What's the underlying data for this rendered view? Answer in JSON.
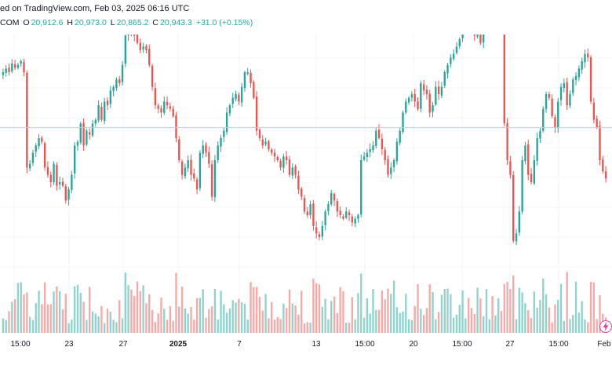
{
  "header": {
    "published": "ed on TradingView.com, Feb 03, 2025 06:16 UTC",
    "symbol": "COM",
    "o_label": "O",
    "o_value": "20,912.6",
    "h_label": "H",
    "h_value": "20,973.0",
    "l_label": "L",
    "l_value": "20,865.2",
    "c_label": "C",
    "c_value": "20,943.3",
    "change": "+31.0 (+0.15%)"
  },
  "colors": {
    "up": "#26a69a",
    "down": "#ef5350",
    "vol_up": "#8fd3cc",
    "vol_down": "#f7a9a7",
    "grid": "#f0f3fa",
    "price_line": "#a8d8d3"
  },
  "xaxis": {
    "ticks": [
      "15:00",
      "23",
      "27",
      "2025",
      "7",
      "13",
      "15:00",
      "20",
      "15:00",
      "27",
      "15:00",
      "Feb"
    ],
    "bold_ticks": [
      "2025"
    ]
  },
  "icons": {
    "bolt": "lightning-bolt-icon"
  },
  "chart_data": {
    "type": "candlestick",
    "price_range": [
      19000,
      22000
    ],
    "last_price": 20943.3,
    "series_close": [
      21700,
      21750,
      21700,
      21820,
      21760,
      21800,
      21850,
      21700,
      20400,
      20450,
      20600,
      20700,
      20800,
      20750,
      20400,
      20300,
      20200,
      20450,
      20150,
      20200,
      20150,
      19950,
      20100,
      20300,
      20700,
      20750,
      21000,
      20700,
      20900,
      20850,
      21000,
      21050,
      21250,
      21050,
      21300,
      21250,
      21450,
      21500,
      21600,
      21550,
      21800,
      22200,
      22300,
      22250,
      22200,
      22100,
      22000,
      22050,
      22000,
      21800,
      21500,
      21250,
      21200,
      21150,
      21300,
      21250,
      21200,
      21100,
      20800,
      20500,
      20300,
      20400,
      20500,
      20300,
      20250,
      20100,
      20600,
      20700,
      20600,
      20450,
      20000,
      20500,
      20700,
      20800,
      20900,
      21150,
      21250,
      21350,
      21400,
      21300,
      21500,
      21700,
      21700,
      21550,
      21350,
      20900,
      20800,
      20700,
      20750,
      20650,
      20600,
      20550,
      20500,
      20400,
      20550,
      20500,
      20300,
      20400,
      20300,
      20100,
      20000,
      19800,
      19750,
      19900,
      19600,
      19500,
      19450,
      19600,
      19800,
      19900,
      20050,
      19950,
      19800,
      19750,
      19700,
      19800,
      19750,
      19650,
      19700,
      19750,
      20500,
      20550,
      20600,
      20650,
      20700,
      20900,
      20800,
      20650,
      20500,
      20300,
      20400,
      20500,
      20750,
      20900,
      21150,
      21300,
      21350,
      21400,
      21300,
      21200,
      21550,
      21450,
      21400,
      21150,
      21250,
      21500,
      21400,
      21500,
      21700,
      21800,
      21900,
      21950,
      22050,
      22150,
      22450,
      22500,
      22450,
      22300,
      22200,
      22250,
      22100,
      22300,
      22400,
      22500,
      22350,
      22500,
      22600,
      22450,
      21000,
      20500,
      20300,
      19400,
      19500,
      19800,
      20500,
      20700,
      20300,
      20200,
      20500,
      20800,
      20900,
      21200,
      21400,
      21350,
      21100,
      20950,
      21300,
      21500,
      21550,
      21250,
      21400,
      21600,
      21650,
      21750,
      21850,
      21950,
      21900,
      21300,
      21050,
      20950,
      20500,
      20350,
      20250
    ]
  }
}
